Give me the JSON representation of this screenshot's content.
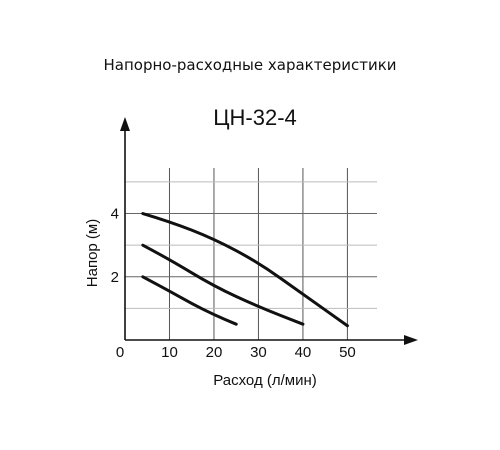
{
  "page": {
    "header": "Напорно-расходные характеристики"
  },
  "chart_data": {
    "type": "line",
    "title": "ЦН-32-4",
    "xlabel": "Расход (л/мин)",
    "ylabel": "Напор (м)",
    "xlim": [
      0,
      58
    ],
    "ylim": [
      0,
      6.8
    ],
    "x_ticks": [
      0,
      10,
      20,
      30,
      40,
      50
    ],
    "y_ticks": [
      2,
      4
    ],
    "grid": true,
    "series": [
      {
        "x": [
          4,
          10,
          15,
          20,
          25
        ],
        "y": [
          2.0,
          1.55,
          1.15,
          0.8,
          0.5
        ],
        "color": "#111111"
      },
      {
        "x": [
          4,
          10,
          20,
          30,
          40
        ],
        "y": [
          3.0,
          2.55,
          1.7,
          1.05,
          0.5
        ],
        "color": "#111111"
      },
      {
        "x": [
          4,
          10,
          20,
          30,
          40,
          50
        ],
        "y": [
          4.0,
          3.75,
          3.2,
          2.45,
          1.45,
          0.45
        ],
        "color": "#111111"
      }
    ]
  }
}
